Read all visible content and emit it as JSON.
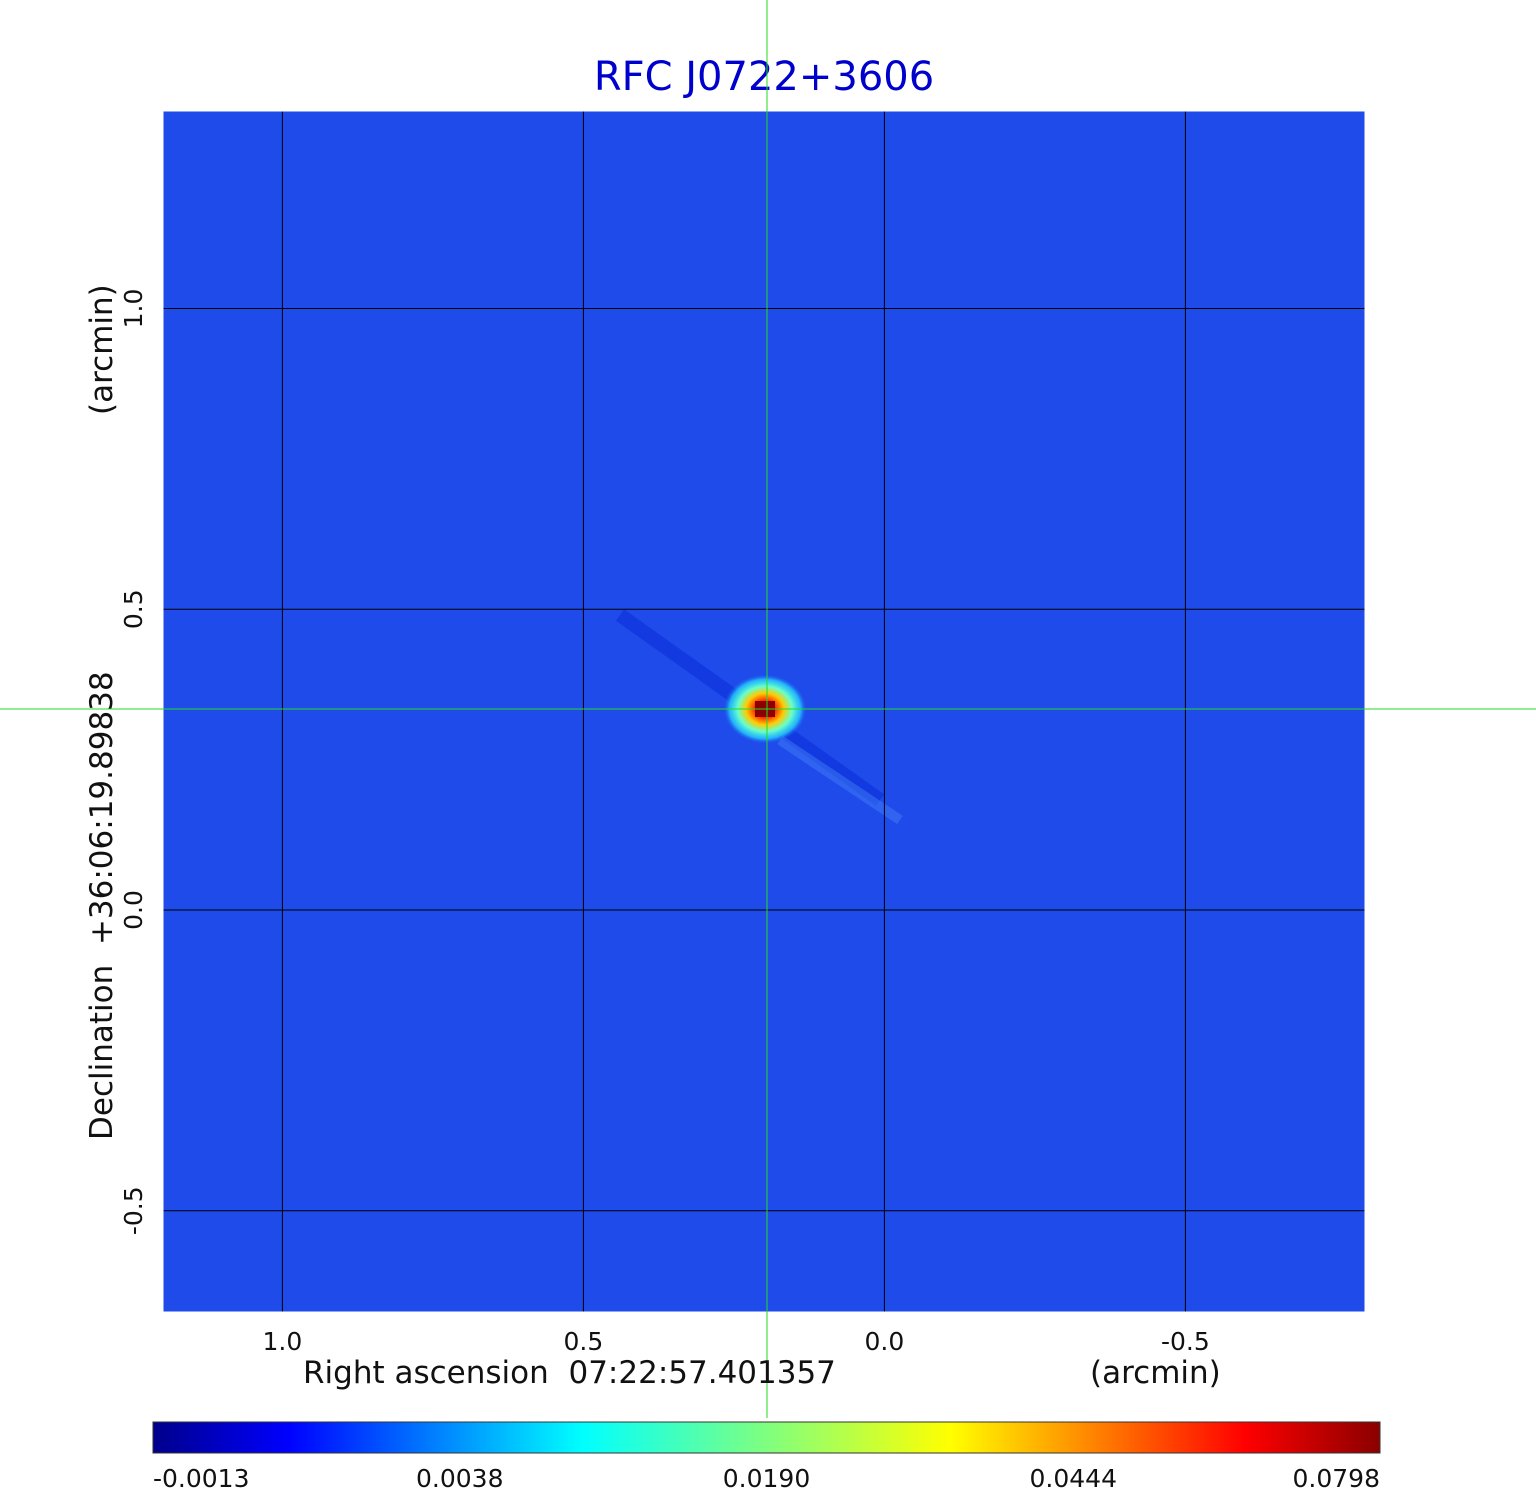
{
  "chart_data": {
    "type": "heatmap",
    "title": "RFC J0722+3606",
    "xlabel": "Right ascension  07:22:57.401357",
    "xunit": "(arcmin)",
    "ylabel": "Declination  +36:06:19.89838",
    "yunit": "(arcmin)",
    "x_ticks": [
      "1.0",
      "0.5",
      "0.0",
      "-0.5"
    ],
    "x_tick_values": [
      1.0,
      0.5,
      0.0,
      -0.5
    ],
    "y_ticks": [
      "1.0",
      "0.5",
      "0.0",
      "-0.5"
    ],
    "y_tick_values": [
      1.0,
      0.5,
      0.0,
      -0.5
    ],
    "xlim": [
      1.2,
      -0.8
    ],
    "ylim": [
      -0.67,
      1.33
    ],
    "grid": true,
    "crosshair": {
      "x": 0.2,
      "y": 0.33,
      "color": "#22dd22"
    },
    "peak": {
      "x": 0.2,
      "y": 0.33,
      "value": 0.0798
    },
    "colorbar": {
      "tick_labels": [
        "-0.0013",
        "0.0038",
        "0.0190",
        "0.0444",
        "0.0798"
      ],
      "colormap": "jet"
    },
    "background_color": "#1e4bea"
  }
}
